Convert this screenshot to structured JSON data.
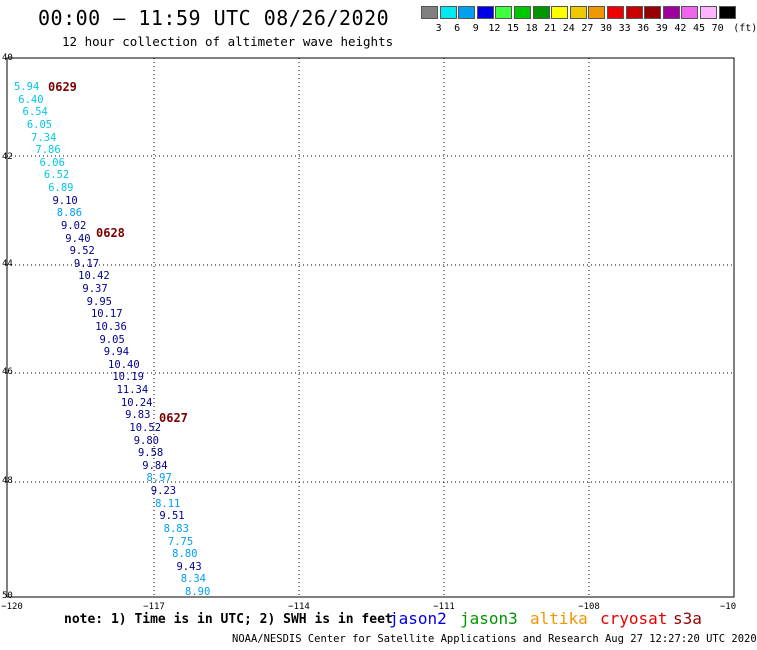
{
  "header": {
    "title": "00:00 – 11:59 UTC 08/26/2020",
    "subtitle": "12 hour collection of altimeter wave heights"
  },
  "legend": {
    "unit": "(ft)",
    "bins": [
      {
        "color": "#808080",
        "label": "3"
      },
      {
        "color": "#00e8f0",
        "label": "6"
      },
      {
        "color": "#00a0f0",
        "label": "9"
      },
      {
        "color": "#0000e6",
        "label": "12"
      },
      {
        "color": "#40ff40",
        "label": "15"
      },
      {
        "color": "#00c800",
        "label": "18"
      },
      {
        "color": "#009600",
        "label": "21"
      },
      {
        "color": "#ffff00",
        "label": "24"
      },
      {
        "color": "#f0c800",
        "label": "27"
      },
      {
        "color": "#f09600",
        "label": "30"
      },
      {
        "color": "#f00000",
        "label": "33"
      },
      {
        "color": "#c80000",
        "label": "36"
      },
      {
        "color": "#960000",
        "label": "39"
      },
      {
        "color": "#a000a0",
        "label": "42"
      },
      {
        "color": "#f064f0",
        "label": "45"
      },
      {
        "color": "#ffb4ff",
        "label": "70"
      },
      {
        "color": "#000000",
        "label": ""
      }
    ]
  },
  "map": {
    "lat_labels": [
      "40",
      "42",
      "44",
      "46",
      "48",
      "50"
    ],
    "lon_labels": [
      "−120",
      "−117",
      "−114",
      "−111",
      "−108",
      "−10"
    ],
    "passes": [
      "0629",
      "0628",
      "0627"
    ],
    "wave_heights": [
      {
        "v": "5.94",
        "c": "#00c8e6"
      },
      {
        "v": "6.40",
        "c": "#00c8e6"
      },
      {
        "v": "6.54",
        "c": "#00c8e6"
      },
      {
        "v": "6.05",
        "c": "#00c8e6"
      },
      {
        "v": "7.34",
        "c": "#00c8e6"
      },
      {
        "v": "7.86",
        "c": "#00c8e6"
      },
      {
        "v": "6.06",
        "c": "#00c8e6"
      },
      {
        "v": "6.52",
        "c": "#00c8e6"
      },
      {
        "v": "6.89",
        "c": "#00c8e6"
      },
      {
        "v": "9.10",
        "c": "#00008c"
      },
      {
        "v": "8.86",
        "c": "#00a0f0"
      },
      {
        "v": "9.02",
        "c": "#00008c"
      },
      {
        "v": "9.40",
        "c": "#00008c"
      },
      {
        "v": "9.52",
        "c": "#00008c"
      },
      {
        "v": "9.17",
        "c": "#00008c"
      },
      {
        "v": "10.42",
        "c": "#00008c"
      },
      {
        "v": "9.37",
        "c": "#00008c"
      },
      {
        "v": "9.95",
        "c": "#00008c"
      },
      {
        "v": "10.17",
        "c": "#00008c"
      },
      {
        "v": "10.36",
        "c": "#00008c"
      },
      {
        "v": "9.05",
        "c": "#00008c"
      },
      {
        "v": "9.94",
        "c": "#00008c"
      },
      {
        "v": "10.40",
        "c": "#00008c"
      },
      {
        "v": "10.19",
        "c": "#00008c"
      },
      {
        "v": "11.34",
        "c": "#00008c"
      },
      {
        "v": "10.24",
        "c": "#00008c"
      },
      {
        "v": "9.83",
        "c": "#00008c"
      },
      {
        "v": "10.52",
        "c": "#00008c"
      },
      {
        "v": "9.80",
        "c": "#00008c"
      },
      {
        "v": "9.58",
        "c": "#00008c"
      },
      {
        "v": "9.84",
        "c": "#00008c"
      },
      {
        "v": "8.97",
        "c": "#00a0f0"
      },
      {
        "v": "9.23",
        "c": "#00008c"
      },
      {
        "v": "8.11",
        "c": "#00a0f0"
      },
      {
        "v": "9.51",
        "c": "#00008c"
      },
      {
        "v": "8.83",
        "c": "#00a0f0"
      },
      {
        "v": "7.75",
        "c": "#00a0f0"
      },
      {
        "v": "8.80",
        "c": "#00a0f0"
      },
      {
        "v": "9.43",
        "c": "#00008c"
      },
      {
        "v": "8.34",
        "c": "#00a0f0"
      },
      {
        "v": "8.90",
        "c": "#00a0f0"
      }
    ]
  },
  "footer": {
    "note": "note:  1) Time is in UTC;  2) SWH is in feet",
    "satellites": [
      {
        "name": "jason2",
        "color": "#0000e6"
      },
      {
        "name": "jason3",
        "color": "#009600"
      },
      {
        "name": "altika",
        "color": "#f09600"
      },
      {
        "name": "cryosat",
        "color": "#e60000"
      },
      {
        "name": "s3a",
        "color": "#960000"
      }
    ],
    "credit": "NOAA/NESDIS Center for Satellite Applications and Research    Aug 27 12:27:20 UTC 2020"
  }
}
